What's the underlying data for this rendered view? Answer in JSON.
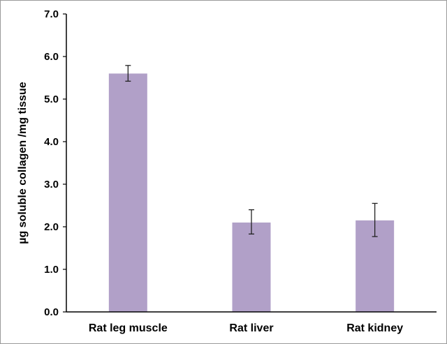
{
  "chart_data": {
    "type": "bar",
    "title": "",
    "xlabel": "",
    "ylabel": "µg soluble collagen /mg tissue",
    "categories": [
      "Rat leg muscle",
      "Rat liver",
      "Rat kidney"
    ],
    "values": [
      5.6,
      2.1,
      2.15
    ],
    "error_low": [
      5.42,
      1.83,
      1.77
    ],
    "error_high": [
      5.79,
      2.4,
      2.55
    ],
    "ylim": [
      0,
      7
    ],
    "yticks": [
      "0.0",
      "1.0",
      "2.0",
      "3.0",
      "4.0",
      "5.0",
      "6.0",
      "7.0"
    ],
    "bar_color": "#b1a0c8",
    "grid": false,
    "legend": "none"
  }
}
